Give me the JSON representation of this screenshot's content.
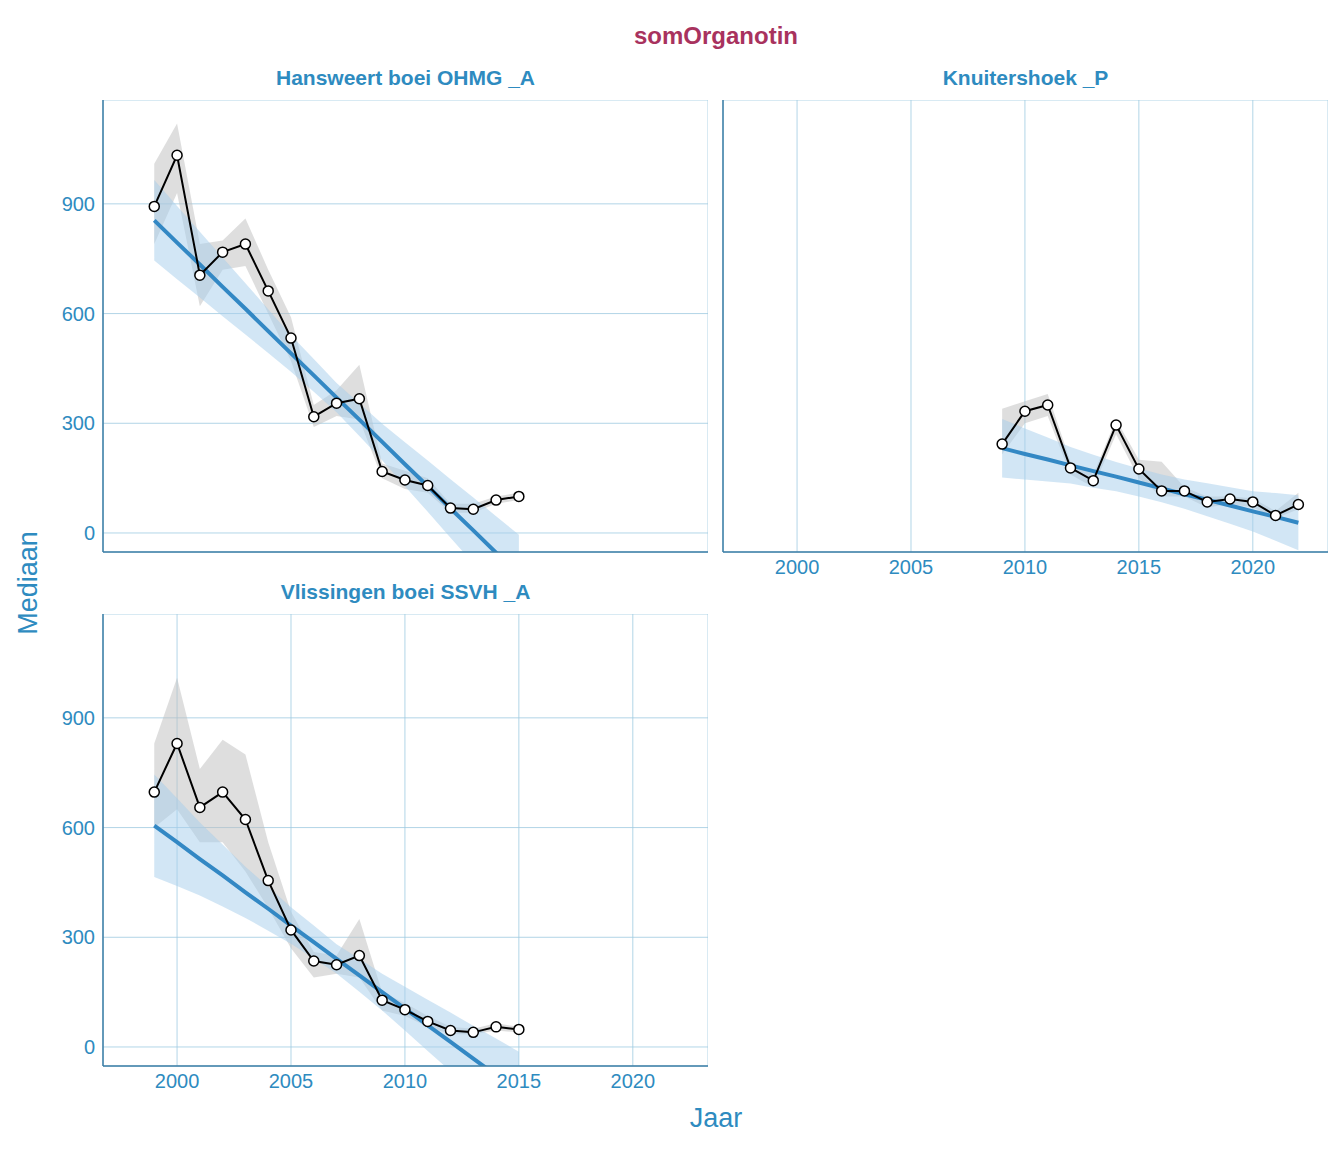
{
  "title": "somOrganotin",
  "x_label": "Jaar",
  "y_label": "Mediaan",
  "chart_data": [
    {
      "title": "Hansweert boei OHMG _A",
      "type": "line",
      "color": "#000000",
      "marker": "circle",
      "grid": true,
      "tick_labels": "y",
      "xlim": [
        1996.75,
        2023.3
      ],
      "ylim": [
        -52,
        1184
      ],
      "xticks": [
        2000,
        2005,
        2010,
        2015,
        2020
      ],
      "yticks": [
        0,
        300,
        600,
        900
      ],
      "x": [
        1999,
        2000,
        2001,
        2002,
        2003,
        2004,
        2005,
        2006,
        2007,
        2008,
        2009,
        2010,
        2011,
        2012,
        2013,
        2014,
        2015
      ],
      "values": [
        893,
        1033,
        705,
        768,
        790,
        662,
        533,
        318,
        355,
        367,
        168,
        145,
        130,
        68,
        65,
        90,
        100
      ],
      "band": {
        "color": "#bebebe",
        "lower": [
          790,
          930,
          620,
          720,
          730,
          600,
          470,
          290,
          320,
          310,
          150,
          120,
          110,
          55,
          55,
          80,
          90
        ],
        "upper": [
          1010,
          1120,
          790,
          800,
          860,
          720,
          590,
          350,
          390,
          460,
          190,
          170,
          150,
          80,
          80,
          100,
          110
        ]
      },
      "trend": {
        "color": "#3388c4",
        "band_color": "#a6cdeb",
        "values": [
          855,
          794,
          734,
          673,
          613,
          552,
          491,
          431,
          370,
          310,
          249,
          188,
          128,
          67,
          7,
          -54,
          -115
        ],
        "lower": [
          745,
          694,
          644,
          593,
          543,
          492,
          441,
          386,
          330,
          265,
          199,
          128,
          58,
          -13,
          -83,
          -154,
          -225
        ],
        "upper": [
          965,
          894,
          824,
          753,
          683,
          612,
          541,
          476,
          410,
          355,
          299,
          248,
          198,
          147,
          97,
          46,
          -5
        ]
      }
    },
    {
      "title": "Knuitershoek _P",
      "type": "line",
      "color": "#000000",
      "marker": "circle",
      "grid": true,
      "tick_labels": "x",
      "xlim": [
        1996.75,
        2023.3
      ],
      "ylim": [
        -52,
        1184
      ],
      "xticks": [
        2000,
        2005,
        2010,
        2015,
        2020
      ],
      "yticks": [
        0,
        300,
        600,
        900
      ],
      "x": [
        2009,
        2010,
        2011,
        2012,
        2013,
        2014,
        2015,
        2016,
        2017,
        2018,
        2019,
        2020,
        2021,
        2022
      ],
      "values": [
        243,
        333,
        350,
        178,
        143,
        295,
        175,
        115,
        115,
        85,
        93,
        85,
        48,
        78
      ],
      "band": {
        "color": "#bebebe",
        "lower": [
          215,
          300,
          320,
          160,
          125,
          270,
          150,
          100,
          100,
          70,
          80,
          70,
          40,
          65
        ],
        "upper": [
          340,
          360,
          380,
          195,
          160,
          310,
          200,
          195,
          125,
          100,
          100,
          95,
          60,
          110
        ]
      },
      "trend": {
        "color": "#3388c4",
        "band_color": "#a6cdeb",
        "values": [
          232,
          216,
          201,
          185,
          169,
          154,
          138,
          122,
          106,
          91,
          75,
          59,
          44,
          28
        ],
        "lower": [
          152,
          146,
          141,
          135,
          124,
          114,
          100,
          84,
          66,
          46,
          25,
          4,
          -21,
          -47
        ],
        "upper": [
          312,
          286,
          261,
          235,
          214,
          194,
          176,
          160,
          146,
          136,
          125,
          114,
          109,
          103
        ]
      }
    },
    {
      "title": "Vlissingen boei SSVH _A",
      "type": "line",
      "color": "#000000",
      "marker": "circle",
      "grid": true,
      "tick_labels": true,
      "xlim": [
        1996.75,
        2023.3
      ],
      "ylim": [
        -52,
        1184
      ],
      "xticks": [
        2000,
        2005,
        2010,
        2015,
        2020
      ],
      "yticks": [
        0,
        300,
        600,
        900
      ],
      "x": [
        1999,
        2000,
        2001,
        2002,
        2003,
        2004,
        2005,
        2006,
        2007,
        2008,
        2009,
        2010,
        2011,
        2012,
        2013,
        2014,
        2015
      ],
      "values": [
        697,
        830,
        655,
        697,
        622,
        455,
        320,
        235,
        225,
        250,
        128,
        102,
        70,
        45,
        40,
        55,
        48
      ],
      "band": {
        "color": "#bebebe",
        "lower": [
          600,
          650,
          560,
          560,
          480,
          380,
          270,
          190,
          200,
          190,
          100,
          85,
          55,
          35,
          35,
          45,
          40
        ],
        "upper": [
          830,
          1010,
          760,
          840,
          800,
          560,
          370,
          260,
          250,
          350,
          150,
          120,
          85,
          55,
          50,
          65,
          55
        ]
      },
      "trend": {
        "color": "#3388c4",
        "band_color": "#a6cdeb",
        "values": [
          605,
          560,
          514,
          469,
          423,
          378,
          332,
          287,
          241,
          196,
          150,
          105,
          59,
          14,
          -32,
          -77,
          -123
        ],
        "lower": [
          465,
          440,
          414,
          384,
          353,
          318,
          282,
          242,
          201,
          151,
          100,
          45,
          -11,
          -66,
          -122,
          -177,
          -233
        ],
        "upper": [
          745,
          680,
          614,
          554,
          493,
          438,
          382,
          332,
          281,
          241,
          200,
          165,
          129,
          94,
          58,
          23,
          -13
        ]
      }
    }
  ]
}
